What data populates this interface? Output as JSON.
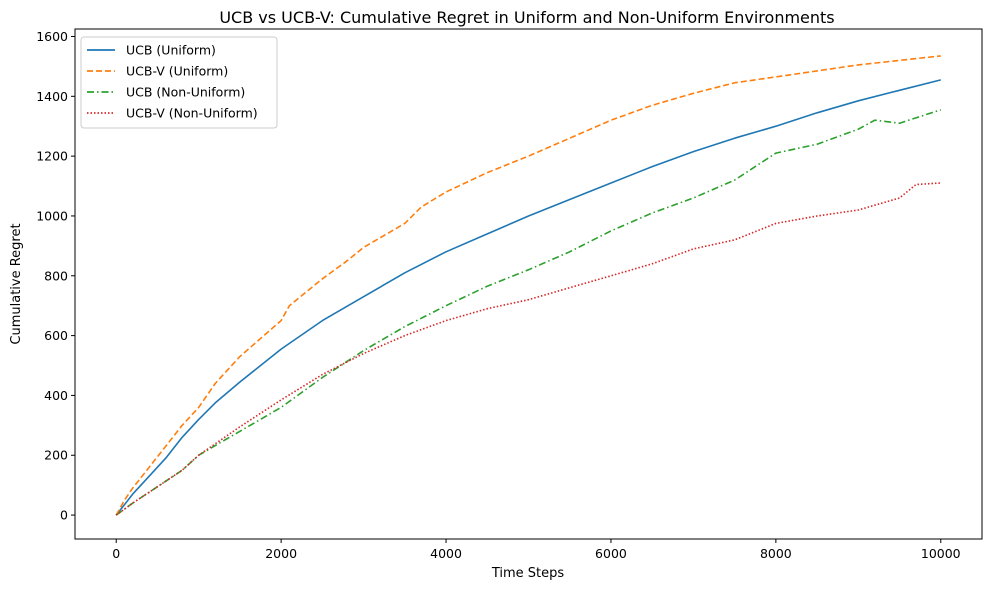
{
  "chart_data": {
    "type": "line",
    "title": "UCB vs UCB-V: Cumulative Regret in Uniform and Non-Uniform Environments",
    "xlabel": "Time Steps",
    "ylabel": "Cumulative Regret",
    "xlim": [
      -500,
      10500
    ],
    "ylim": [
      -80,
      1625
    ],
    "xticks": [
      0,
      2000,
      4000,
      6000,
      8000,
      10000
    ],
    "yticks": [
      0,
      200,
      400,
      600,
      800,
      1000,
      1200,
      1400,
      1600
    ],
    "grid": false,
    "legend_position": "top-left",
    "series": [
      {
        "name": "UCB (Uniform)",
        "color": "#1f77b4",
        "style": "solid",
        "x": [
          0,
          100,
          200,
          400,
          600,
          800,
          1000,
          1200,
          1500,
          2000,
          2500,
          3000,
          3500,
          4000,
          4500,
          5000,
          5500,
          6000,
          6500,
          7000,
          7500,
          8000,
          8500,
          9000,
          9500,
          10000
        ],
        "y": [
          0,
          35,
          70,
          130,
          190,
          260,
          320,
          375,
          445,
          555,
          650,
          730,
          810,
          880,
          940,
          1000,
          1055,
          1110,
          1165,
          1215,
          1260,
          1300,
          1345,
          1385,
          1420,
          1455
        ]
      },
      {
        "name": "UCB-V (Uniform)",
        "color": "#ff7f0e",
        "style": "dashed",
        "x": [
          0,
          100,
          200,
          400,
          600,
          800,
          1000,
          1200,
          1500,
          2000,
          2100,
          2500,
          2800,
          3000,
          3500,
          3700,
          4000,
          4500,
          5000,
          5500,
          6000,
          6500,
          7000,
          7500,
          8000,
          8500,
          9000,
          9500,
          10000
        ],
        "y": [
          0,
          50,
          90,
          160,
          230,
          300,
          360,
          440,
          530,
          650,
          700,
          790,
          850,
          895,
          975,
          1030,
          1080,
          1145,
          1200,
          1260,
          1320,
          1370,
          1410,
          1445,
          1465,
          1485,
          1505,
          1520,
          1535
        ]
      },
      {
        "name": "UCB (Non-Uniform)",
        "color": "#2ca02c",
        "style": "dashdot",
        "x": [
          0,
          200,
          500,
          800,
          1000,
          1500,
          2000,
          2500,
          3000,
          3500,
          4000,
          4500,
          5000,
          5500,
          6000,
          6500,
          7000,
          7500,
          8000,
          8500,
          9000,
          9200,
          9500,
          10000
        ],
        "y": [
          0,
          40,
          95,
          150,
          200,
          280,
          360,
          460,
          550,
          630,
          700,
          765,
          820,
          880,
          950,
          1010,
          1060,
          1120,
          1210,
          1240,
          1290,
          1320,
          1310,
          1355
        ]
      },
      {
        "name": "UCB-V (Non-Uniform)",
        "color": "#d62728",
        "style": "dotted",
        "x": [
          0,
          200,
          500,
          800,
          1000,
          1500,
          2000,
          2500,
          3000,
          3500,
          4000,
          4500,
          5000,
          5500,
          6000,
          6500,
          7000,
          7500,
          8000,
          8500,
          9000,
          9500,
          9700,
          10000
        ],
        "y": [
          0,
          40,
          95,
          150,
          200,
          295,
          385,
          470,
          540,
          600,
          650,
          690,
          720,
          760,
          800,
          840,
          890,
          920,
          975,
          1000,
          1020,
          1060,
          1105,
          1110
        ]
      }
    ]
  }
}
